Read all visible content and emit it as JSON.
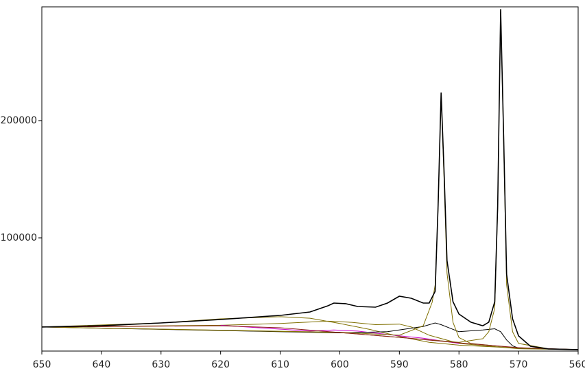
{
  "chart_data": {
    "type": "line",
    "xlim": [
      650,
      560
    ],
    "ylim": [
      3500,
      297000
    ],
    "xticks": [
      650,
      640,
      630,
      620,
      610,
      600,
      590,
      580,
      570,
      560
    ],
    "yticks": [
      100000,
      200000
    ],
    "series": [
      {
        "color": "#7f6f00",
        "x": [
          650,
          630,
          620,
          610,
          605,
          600,
          595,
          590,
          585,
          580,
          570,
          560
        ],
        "values": [
          24000,
          27500,
          31000,
          32800,
          31500,
          27000,
          22000,
          16000,
          11000,
          8500,
          6000,
          4700
        ]
      },
      {
        "color": "#7f6f00",
        "x": [
          650,
          620,
          610,
          602,
          598,
          594,
          590,
          588,
          585,
          580,
          570,
          560
        ],
        "values": [
          24000,
          25500,
          27000,
          29000,
          28000,
          26000,
          26500,
          24000,
          17000,
          10000,
          5500,
          4700
        ]
      },
      {
        "color": "#cc00cc",
        "x": [
          620,
          605,
          601,
          597,
          590,
          586,
          580
        ],
        "values": [
          25500,
          20500,
          21500,
          20500,
          16500,
          14500,
          10000
        ]
      },
      {
        "color": "#000000",
        "x": [
          650,
          600,
          592,
          586,
          584,
          583,
          580,
          576,
          574,
          573,
          572,
          571,
          570,
          560
        ],
        "values": [
          24000,
          19000,
          20000,
          24500,
          27500,
          26000,
          20000,
          21500,
          22500,
          20000,
          13000,
          8000,
          6000,
          4700
        ]
      },
      {
        "color": "#7f6f00",
        "x": [
          650,
          600,
          590,
          586,
          584.5,
          584,
          583.5,
          583,
          582.5,
          582,
          581,
          580,
          578,
          570,
          560
        ],
        "values": [
          24000,
          19500,
          17000,
          25000,
          45000,
          60000,
          125000,
          222000,
          150000,
          70000,
          28000,
          15000,
          10000,
          6000,
          4700
        ]
      },
      {
        "color": "#7f6f00",
        "x": [
          650,
          600,
          580,
          576,
          575,
          574,
          573.5,
          573,
          572.5,
          572,
          571,
          570,
          565,
          560
        ],
        "values": [
          24000,
          19300,
          11000,
          14000,
          20000,
          40000,
          125000,
          295000,
          180000,
          60000,
          20000,
          10000,
          5500,
          4700
        ]
      },
      {
        "color": "#8b1a1a",
        "x": [
          650,
          620,
          610,
          600,
          590,
          580,
          570,
          560
        ],
        "values": [
          24000,
          25100,
          23400,
          19300,
          15200,
          10500,
          6400,
          4700
        ]
      },
      {
        "color": "#000000",
        "x": [
          650,
          640,
          630,
          620,
          615,
          610,
          605,
          602,
          601,
          599,
          597,
          594,
          592,
          590,
          588,
          586,
          585,
          584,
          583.5,
          583,
          582.5,
          582,
          581,
          580,
          578,
          576,
          575,
          574,
          573.5,
          573,
          572.5,
          572,
          571,
          570,
          568,
          565,
          560
        ],
        "values": [
          24000,
          25100,
          27500,
          30400,
          32200,
          33900,
          36800,
          42100,
          44400,
          43900,
          41500,
          40900,
          44400,
          50300,
          48500,
          44400,
          44400,
          54400,
          127500,
          224000,
          156700,
          80700,
          45600,
          35100,
          28100,
          25100,
          28100,
          45600,
          127500,
          295000,
          186000,
          69000,
          31000,
          16400,
          7600,
          5300,
          4700
        ]
      }
    ]
  }
}
